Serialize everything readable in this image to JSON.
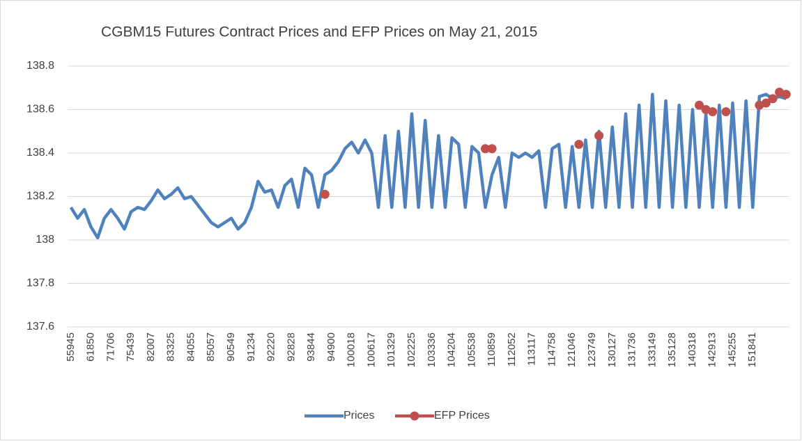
{
  "chart_data": {
    "type": "line",
    "title": "CGBM15 Futures Contract Prices and EFP Prices on May 21, 2015",
    "categories": [
      "55945",
      null,
      null,
      "61850",
      null,
      null,
      "71706",
      null,
      null,
      "75439",
      null,
      null,
      "82007",
      null,
      null,
      "83325",
      null,
      null,
      "84055",
      null,
      null,
      "85057",
      null,
      null,
      "90549",
      null,
      null,
      "91234",
      null,
      null,
      "92220",
      null,
      null,
      "92828",
      null,
      null,
      "93844",
      null,
      null,
      "94900",
      null,
      null,
      "100018",
      null,
      null,
      "100617",
      null,
      null,
      "101329",
      null,
      null,
      "102225",
      null,
      null,
      "103336",
      null,
      null,
      "104204",
      null,
      null,
      "105538",
      null,
      null,
      "110859",
      null,
      null,
      "112052",
      null,
      null,
      "113117",
      null,
      null,
      "114758",
      null,
      null,
      "121046",
      null,
      null,
      "123749",
      null,
      null,
      "130127",
      null,
      null,
      "131736",
      null,
      null,
      "133149",
      null,
      null,
      "135128",
      null,
      null,
      "140318",
      null,
      null,
      "142913",
      null,
      null,
      "145255",
      null,
      null,
      "151841",
      null,
      null,
      null,
      null,
      null
    ],
    "series": [
      {
        "name": "Prices",
        "color": "#4f81bd",
        "marker": false,
        "values": [
          138.15,
          138.1,
          138.14,
          138.06,
          138.01,
          138.1,
          138.14,
          138.1,
          138.05,
          138.13,
          138.15,
          138.14,
          138.18,
          138.23,
          138.19,
          138.21,
          138.24,
          138.19,
          138.2,
          138.16,
          138.12,
          138.08,
          138.06,
          138.08,
          138.1,
          138.05,
          138.08,
          138.15,
          138.27,
          138.22,
          138.23,
          138.15,
          138.25,
          138.28,
          138.15,
          138.33,
          138.3,
          138.15,
          138.3,
          138.32,
          138.36,
          138.42,
          138.45,
          138.4,
          138.46,
          138.4,
          138.15,
          138.48,
          138.15,
          138.5,
          138.15,
          138.58,
          138.15,
          138.55,
          138.15,
          138.48,
          138.15,
          138.47,
          138.44,
          138.15,
          138.43,
          138.4,
          138.15,
          138.3,
          138.38,
          138.15,
          138.4,
          138.38,
          138.4,
          138.38,
          138.41,
          138.15,
          138.42,
          138.44,
          138.15,
          138.43,
          138.15,
          138.46,
          138.15,
          138.5,
          138.15,
          138.52,
          138.15,
          138.58,
          138.15,
          138.62,
          138.15,
          138.67,
          138.15,
          138.64,
          138.15,
          138.62,
          138.15,
          138.6,
          138.15,
          138.58,
          138.15,
          138.62,
          138.15,
          138.63,
          138.15,
          138.64,
          138.15,
          138.66,
          138.67,
          138.65,
          138.66,
          138.65
        ]
      },
      {
        "name": "EFP Prices",
        "color": "#c0504d",
        "marker": true,
        "values": [
          null,
          null,
          null,
          null,
          null,
          null,
          null,
          null,
          null,
          null,
          null,
          null,
          null,
          null,
          null,
          null,
          null,
          null,
          null,
          null,
          null,
          null,
          null,
          null,
          null,
          null,
          null,
          null,
          null,
          null,
          null,
          null,
          null,
          null,
          null,
          null,
          null,
          null,
          138.21,
          null,
          null,
          null,
          null,
          null,
          null,
          null,
          null,
          null,
          null,
          null,
          null,
          null,
          null,
          null,
          null,
          null,
          null,
          null,
          null,
          null,
          null,
          null,
          138.42,
          138.42,
          null,
          null,
          null,
          null,
          null,
          null,
          null,
          null,
          null,
          null,
          null,
          null,
          138.44,
          null,
          null,
          138.48,
          null,
          null,
          null,
          null,
          null,
          null,
          null,
          null,
          null,
          null,
          null,
          null,
          null,
          null,
          138.62,
          138.6,
          138.59,
          null,
          138.59,
          null,
          null,
          null,
          null,
          138.62,
          138.63,
          138.65,
          138.68,
          138.67
        ]
      }
    ],
    "ylim": [
      137.6,
      138.8
    ],
    "yticks": [
      137.6,
      137.8,
      138,
      138.2,
      138.4,
      138.6,
      138.8
    ],
    "grid": true,
    "legend": "bottom"
  }
}
